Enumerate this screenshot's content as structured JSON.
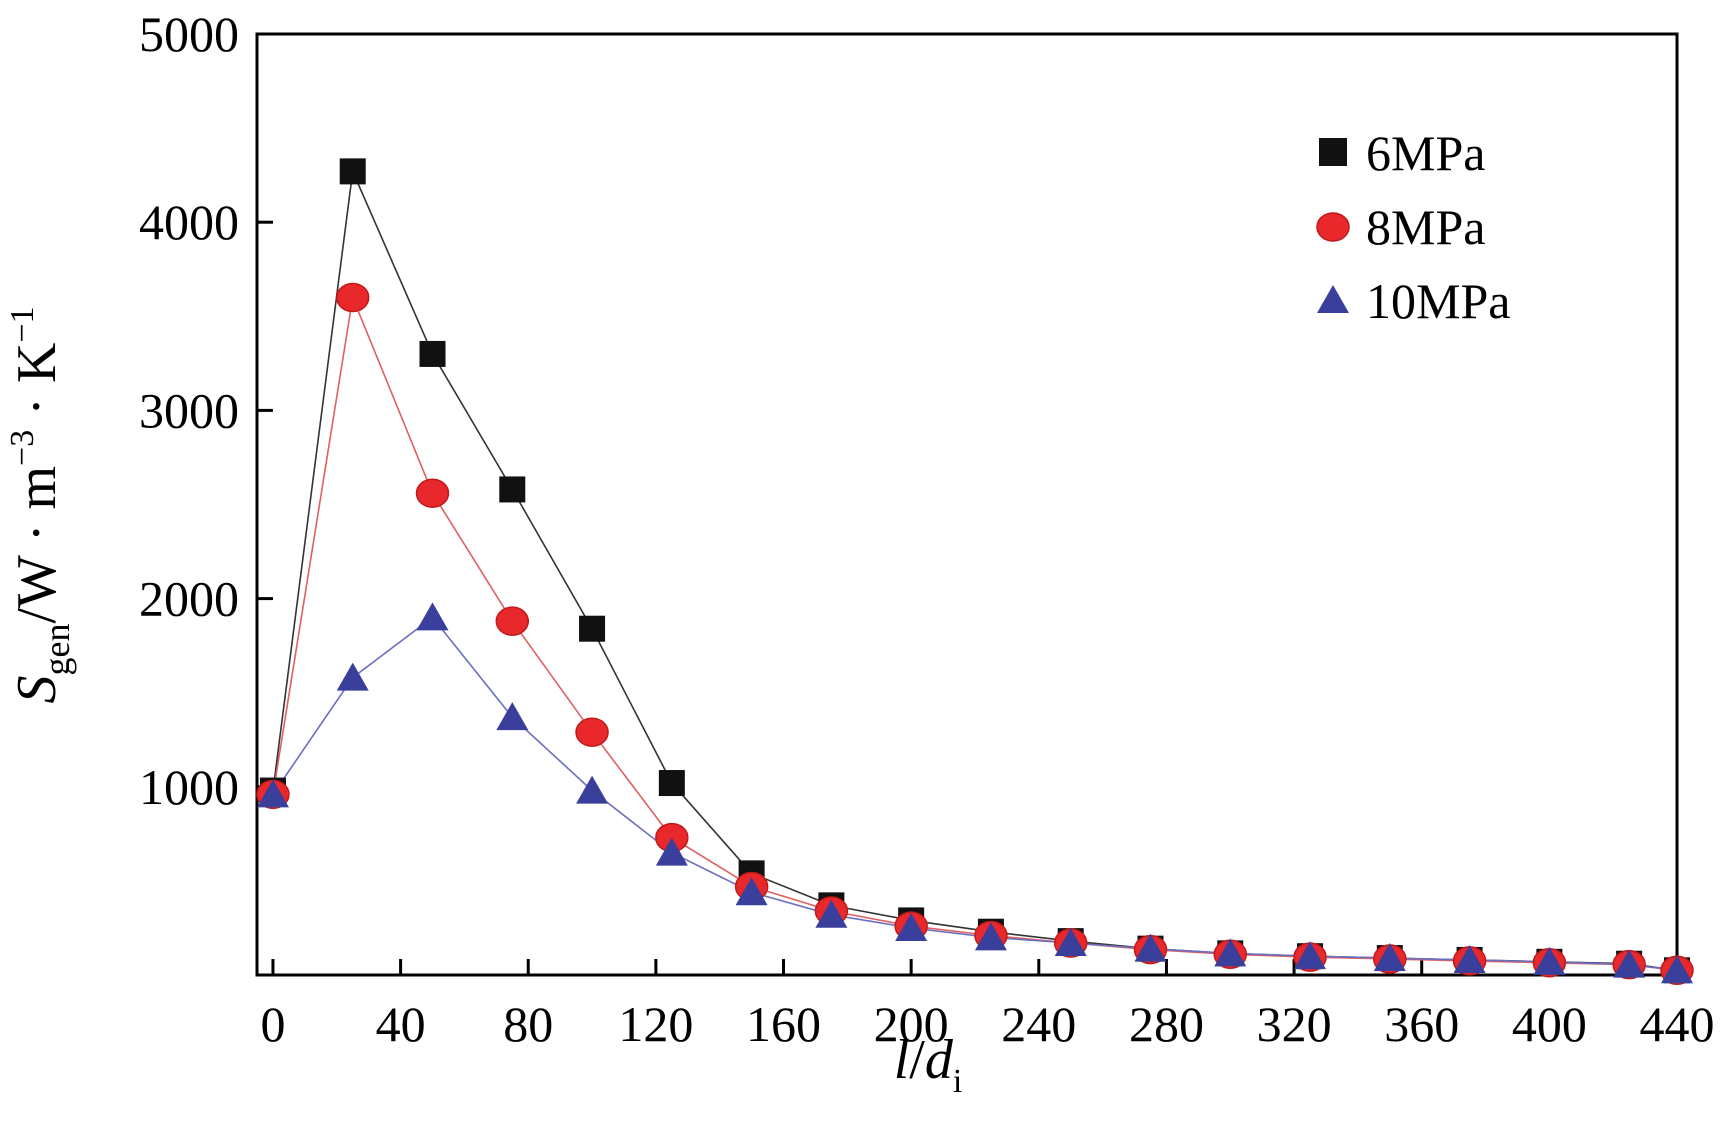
{
  "chart_data": {
    "type": "line",
    "title": "",
    "xlabel": {
      "main": "l/d",
      "main_italic_1": "l",
      "slash": "/",
      "main_italic_2": "d",
      "sub": "i"
    },
    "ylabel": {
      "symbol": "S",
      "sub": "gen",
      "unit_1": "/W · m",
      "sup_1": "−3",
      "unit_2": " · K",
      "sup_2": "−1"
    },
    "xlim": [
      0,
      440
    ],
    "ylim": [
      0,
      5000
    ],
    "x_axis_offset": 5,
    "xticks": [
      0,
      40,
      80,
      120,
      160,
      200,
      240,
      280,
      320,
      360,
      400,
      440
    ],
    "xtick_labels": [
      "0",
      "40",
      "80",
      "120",
      "160",
      "200",
      "240",
      "280",
      "320",
      "360",
      "400",
      "440"
    ],
    "yticks": [
      1000,
      2000,
      3000,
      4000,
      5000
    ],
    "ytick_labels": [
      "1000",
      "2000",
      "3000",
      "4000",
      "5000"
    ],
    "x": [
      0,
      25,
      50,
      75,
      100,
      125,
      150,
      175,
      200,
      225,
      250,
      275,
      300,
      325,
      350,
      375,
      400,
      425,
      440
    ],
    "series": [
      {
        "name": "6MPa",
        "marker": "square",
        "color": "#111111",
        "line_color": "#333333",
        "values": [
          980,
          4270,
          3300,
          2580,
          1840,
          1020,
          540,
          370,
          290,
          230,
          180,
          140,
          115,
          100,
          90,
          80,
          70,
          60,
          25
        ]
      },
      {
        "name": "8MPa",
        "marker": "circle",
        "color": "#e8282b",
        "line_color": "#e06060",
        "values": [
          960,
          3600,
          2560,
          1880,
          1290,
          730,
          470,
          340,
          260,
          210,
          170,
          135,
          110,
          95,
          85,
          75,
          65,
          55,
          25
        ]
      },
      {
        "name": "10MPa",
        "marker": "triangle",
        "color": "#3a3f9c",
        "line_color": "#6a6fc0",
        "values": [
          960,
          1580,
          1900,
          1370,
          980,
          650,
          440,
          320,
          250,
          200,
          170,
          140,
          115,
          100,
          90,
          80,
          70,
          55,
          25
        ]
      }
    ],
    "legend_position": "top-right",
    "grid": false
  }
}
